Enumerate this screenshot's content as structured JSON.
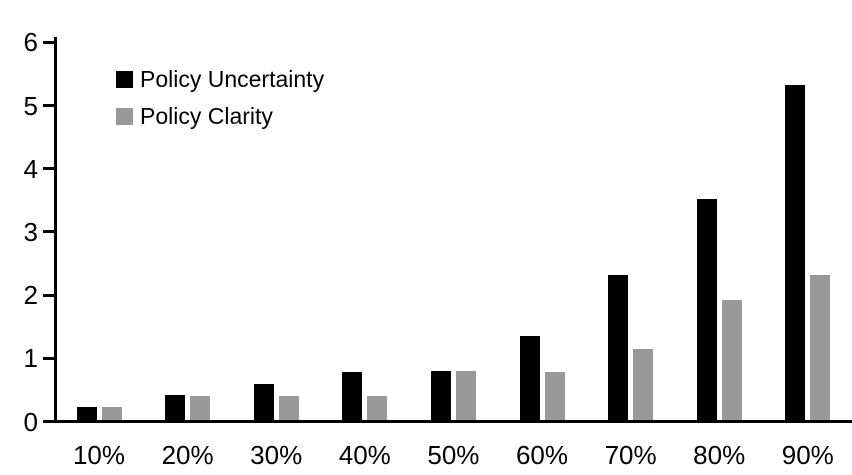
{
  "chart_data": {
    "type": "bar",
    "title": "",
    "xlabel": "",
    "ylabel": "",
    "categories": [
      "10%",
      "20%",
      "30%",
      "40%",
      "50%",
      "60%",
      "70%",
      "80%",
      "90%"
    ],
    "series": [
      {
        "name": "Policy Uncertainty",
        "color": "#000000",
        "values": [
          0.2,
          0.4,
          0.57,
          0.76,
          0.78,
          1.33,
          2.3,
          3.5,
          5.3
        ]
      },
      {
        "name": "Policy Clarity",
        "color": "#999999",
        "values": [
          0.2,
          0.38,
          0.38,
          0.38,
          0.77,
          0.76,
          1.13,
          1.9,
          2.3
        ]
      }
    ],
    "ylim": [
      0,
      6
    ],
    "y_ticks": [
      "0",
      "1",
      "2",
      "3",
      "4",
      "5",
      "6"
    ],
    "grid": false,
    "legend_position": "top-left-inside",
    "axis_color": "#000000",
    "background_color": "#ffffff"
  }
}
